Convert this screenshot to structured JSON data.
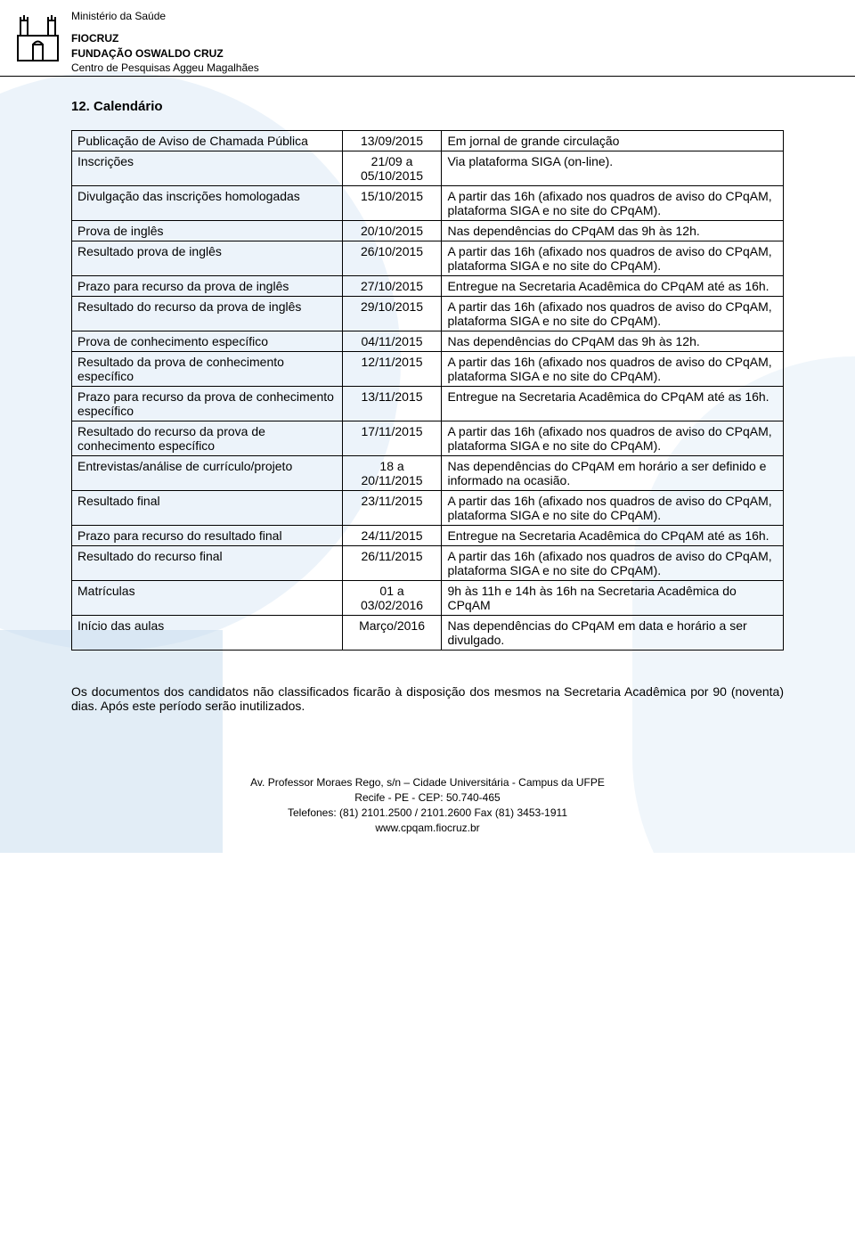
{
  "header": {
    "ministry": "Ministério da Saúde",
    "org1": "FIOCRUZ",
    "org2": "FUNDAÇÃO OSWALDO CRUZ",
    "center": "Centro de Pesquisas Aggeu Magalhães"
  },
  "section_title": "12. Calendário",
  "table": {
    "rows": [
      [
        "Publicação de Aviso de Chamada Pública",
        "13/09/2015",
        "Em jornal de grande circulação"
      ],
      [
        "Inscrições",
        "21/09 a 05/10/2015",
        "Via plataforma SIGA (on-line)."
      ],
      [
        "Divulgação das inscrições homologadas",
        "15/10/2015",
        "A partir das 16h (afixado nos quadros de aviso do CPqAM, plataforma SIGA e no site do CPqAM)."
      ],
      [
        "Prova de inglês",
        "20/10/2015",
        "Nas dependências do CPqAM das 9h às 12h."
      ],
      [
        "Resultado prova de inglês",
        "26/10/2015",
        "A partir das 16h (afixado nos quadros de aviso do CPqAM, plataforma SIGA e no site do CPqAM)."
      ],
      [
        "Prazo para recurso da prova de inglês",
        "27/10/2015",
        "Entregue na Secretaria Acadêmica do CPqAM até as 16h."
      ],
      [
        "Resultado do recurso da prova de inglês",
        "29/10/2015",
        "A partir das 16h (afixado nos quadros de aviso do CPqAM, plataforma SIGA e no site do CPqAM)."
      ],
      [
        "Prova de conhecimento específico",
        "04/11/2015",
        "Nas dependências do CPqAM das 9h às 12h."
      ],
      [
        "Resultado da prova de conhecimento específico",
        "12/11/2015",
        "A partir das 16h (afixado nos quadros de aviso do CPqAM, plataforma SIGA e no site do CPqAM)."
      ],
      [
        "Prazo para recurso da prova de conhecimento específico",
        "13/11/2015",
        "Entregue na Secretaria Acadêmica do CPqAM até as 16h."
      ],
      [
        "Resultado do recurso da prova de conhecimento específico",
        "17/11/2015",
        "A partir das 16h (afixado nos quadros de aviso do CPqAM, plataforma SIGA e no site do CPqAM)."
      ],
      [
        "Entrevistas/análise de currículo/projeto",
        "18 a 20/11/2015",
        "Nas dependências do CPqAM em horário a ser definido e informado na ocasião."
      ],
      [
        "Resultado final",
        "23/11/2015",
        "A partir das 16h (afixado nos quadros de aviso do CPqAM, plataforma SIGA e no site do CPqAM)."
      ],
      [
        "Prazo para recurso do resultado final",
        "24/11/2015",
        "Entregue na Secretaria Acadêmica do CPqAM até as 16h."
      ],
      [
        "Resultado do recurso final",
        "26/11/2015",
        "A partir das 16h (afixado nos quadros de aviso do CPqAM, plataforma SIGA e no site do CPqAM)."
      ],
      [
        "Matrículas",
        "01 a 03/02/2016",
        "9h às 11h e 14h às 16h na Secretaria Acadêmica do CPqAM"
      ],
      [
        "Início das aulas",
        "Março/2016",
        "Nas dependências do CPqAM em data e horário a ser divulgado."
      ]
    ]
  },
  "footnote": "Os documentos dos candidatos não classificados ficarão à disposição dos mesmos na Secretaria Acadêmica por 90 (noventa) dias. Após este período serão inutilizados.",
  "footer": {
    "line1": "Av. Professor Moraes Rego, s/n – Cidade Universitária - Campus da UFPE",
    "line2": "Recife - PE - CEP: 50.740-465",
    "line3": "Telefones: (81) 2101.2500 / 2101.2600  Fax (81) 3453-1911",
    "line4": "www.cpqam.fiocruz.br"
  },
  "colors": {
    "text": "#000000",
    "background": "#ffffff",
    "watermark": "#d9e8f5",
    "border": "#000000"
  }
}
